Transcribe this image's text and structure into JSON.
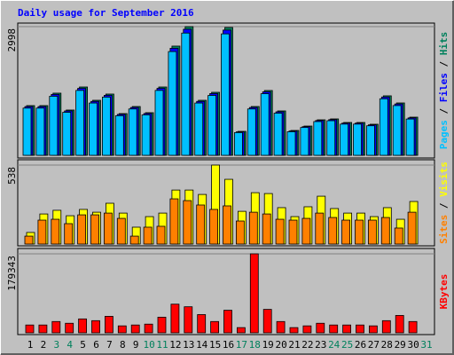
{
  "title": "Daily usage for September 2016",
  "legend_separator": " / ",
  "categories": [
    "1",
    "2",
    "3",
    "4",
    "5",
    "6",
    "7",
    "8",
    "9",
    "10",
    "11",
    "12",
    "13",
    "14",
    "15",
    "16",
    "17",
    "18",
    "19",
    "20",
    "21",
    "22",
    "23",
    "24",
    "25",
    "26",
    "27",
    "28",
    "29",
    "30",
    "31"
  ],
  "category_colors": [
    "#000000",
    "#000000",
    "#00805c",
    "#00805c",
    "#000000",
    "#000000",
    "#000000",
    "#000000",
    "#000000",
    "#00805c",
    "#00805c",
    "#000000",
    "#000000",
    "#000000",
    "#000000",
    "#000000",
    "#00805c",
    "#00805c",
    "#000000",
    "#000000",
    "#000000",
    "#000000",
    "#000000",
    "#00805c",
    "#00805c",
    "#000000",
    "#000000",
    "#000000",
    "#000000",
    "#000000",
    "#00805c"
  ],
  "chart_data": [
    {
      "type": "bar",
      "ylim": [
        0,
        2998
      ],
      "yticks": [
        2998
      ],
      "series": [
        {
          "name": "Pages",
          "color": "#00c0ff",
          "values": [
            1100,
            1100,
            1376,
            1002,
            1512,
            1218,
            1356,
            923,
            1080,
            943,
            1512,
            2417,
            2848,
            1218,
            1395,
            2829,
            530,
            1080,
            1435,
            982,
            550,
            648,
            786,
            806,
            727,
            727,
            688,
            1317,
            1159,
            845,
            null
          ]
        },
        {
          "name": "Files",
          "color": "#0000ff",
          "values": [
            1135,
            1135,
            1419,
            1034,
            1560,
            1256,
            1398,
            953,
            1114,
            973,
            1560,
            2493,
            2938,
            1256,
            1439,
            2918,
            547,
            1114,
            1480,
            1013,
            567,
            668,
            810,
            831,
            750,
            750,
            710,
            1358,
            1196,
            871,
            null
          ]
        },
        {
          "name": "Hits",
          "color": "#00805c",
          "values": [
            1158,
            1158,
            1448,
            1055,
            1592,
            1282,
            1427,
            972,
            1137,
            993,
            1592,
            2544,
            2998,
            1282,
            1468,
            2978,
            558,
            1137,
            1510,
            1034,
            579,
            682,
            827,
            848,
            765,
            765,
            724,
            1386,
            1220,
            889,
            null
          ]
        }
      ]
    },
    {
      "type": "bar",
      "ylim": [
        0,
        538
      ],
      "yticks": [
        538
      ],
      "series": [
        {
          "name": "Sites",
          "color": "#ff8000",
          "values": [
            54,
            163,
            169,
            139,
            199,
            199,
            211,
            175,
            54,
            115,
            121,
            308,
            296,
            266,
            236,
            260,
            157,
            217,
            205,
            169,
            163,
            175,
            211,
            181,
            163,
            163,
            163,
            181,
            109,
            217,
            null
          ]
        },
        {
          "name": "Visits",
          "color": "#ffff00",
          "values": [
            79,
            205,
            230,
            193,
            236,
            217,
            278,
            211,
            115,
            187,
            211,
            368,
            368,
            338,
            538,
            441,
            223,
            350,
            344,
            248,
            187,
            254,
            326,
            242,
            211,
            211,
            187,
            248,
            169,
            290,
            null
          ]
        }
      ]
    },
    {
      "type": "bar",
      "ylim": [
        0,
        179343
      ],
      "yticks": [
        179343
      ],
      "series": [
        {
          "name": "KBytes",
          "color": "#ff0000",
          "values": [
            17739,
            17739,
            25623,
            21681,
            31536,
            27594,
            37449,
            15768,
            17739,
            19710,
            35478,
            65043,
            59130,
            41391,
            25623,
            51246,
            11826,
            179343,
            53217,
            25623,
            11826,
            15768,
            21681,
            17739,
            17739,
            17739,
            15768,
            27594,
            39420,
            25623,
            null
          ]
        }
      ]
    }
  ]
}
